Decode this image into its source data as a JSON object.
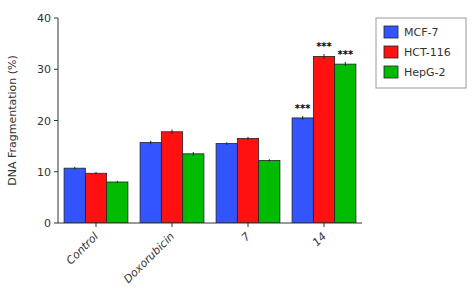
{
  "chart_data": {
    "type": "bar",
    "categories": [
      "Control",
      "Doxorubicin",
      "7",
      "14"
    ],
    "series": [
      {
        "name": "MCF-7",
        "color": "#3355FF",
        "values": [
          10.7,
          15.7,
          15.5,
          20.5
        ],
        "errors": [
          0.25,
          0.35,
          0.25,
          0.35
        ],
        "annotations": [
          null,
          null,
          null,
          "***"
        ]
      },
      {
        "name": "HCT-116",
        "color": "#FF1111",
        "values": [
          9.7,
          17.8,
          16.5,
          32.5
        ],
        "errors": [
          0.25,
          0.45,
          0.3,
          0.45
        ],
        "annotations": [
          null,
          null,
          null,
          "***"
        ]
      },
      {
        "name": "HepG-2",
        "color": "#00BB00",
        "values": [
          8.0,
          13.5,
          12.2,
          31.0
        ],
        "errors": [
          0.25,
          0.35,
          0.25,
          0.4
        ],
        "annotations": [
          null,
          null,
          null,
          "***"
        ]
      }
    ],
    "ylabel": "DNA Fragmentation (%)",
    "ylim": [
      0,
      40
    ],
    "yticks": [
      0,
      10,
      20,
      30,
      40
    ],
    "grid": false,
    "legend": "right"
  }
}
